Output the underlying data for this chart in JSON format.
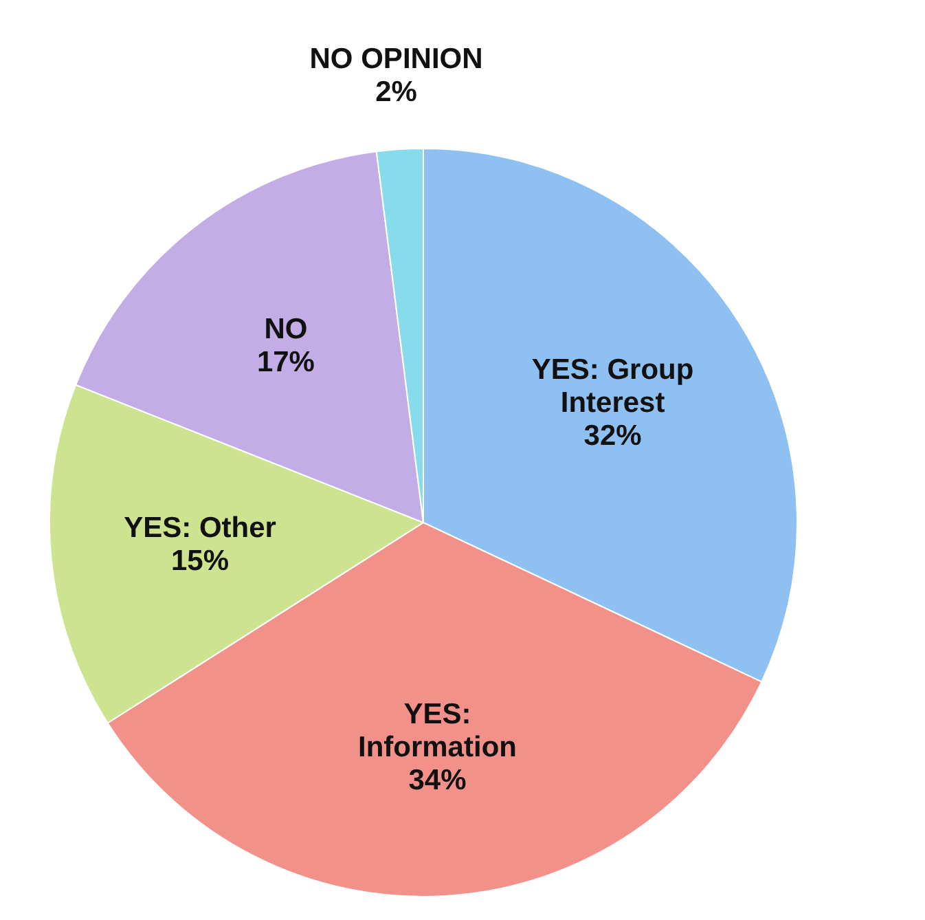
{
  "chart_data": {
    "type": "pie",
    "categories": [
      "YES: Group Interest",
      "YES: Information",
      "YES: Other",
      "NO",
      "NO OPINION"
    ],
    "values": [
      32,
      34,
      15,
      17,
      2
    ],
    "value_labels": [
      "32%",
      "34%",
      "15%",
      "17%",
      "2%"
    ],
    "colors": [
      "#8ec0f2",
      "#f2918a",
      "#cde38f",
      "#c3ade6",
      "#86dcea"
    ]
  }
}
